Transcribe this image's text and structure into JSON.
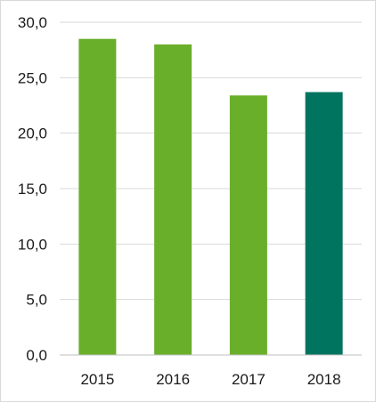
{
  "chart_data": {
    "type": "bar",
    "categories": [
      "2015",
      "2016",
      "2017",
      "2018"
    ],
    "values": [
      28.5,
      28.0,
      23.4,
      23.7
    ],
    "bar_colors": [
      "#6aaf2a",
      "#6aaf2a",
      "#6aaf2a",
      "#00745f"
    ],
    "ylim": [
      0,
      30
    ],
    "yticks": [
      "0,0",
      "5,0",
      "10,0",
      "15,0",
      "20,0",
      "25,0",
      "30,0"
    ],
    "grid": true,
    "gridline_color": "#d9d9d9",
    "axis_color": "#bfbfbf",
    "title": "",
    "xlabel": "",
    "ylabel": ""
  }
}
